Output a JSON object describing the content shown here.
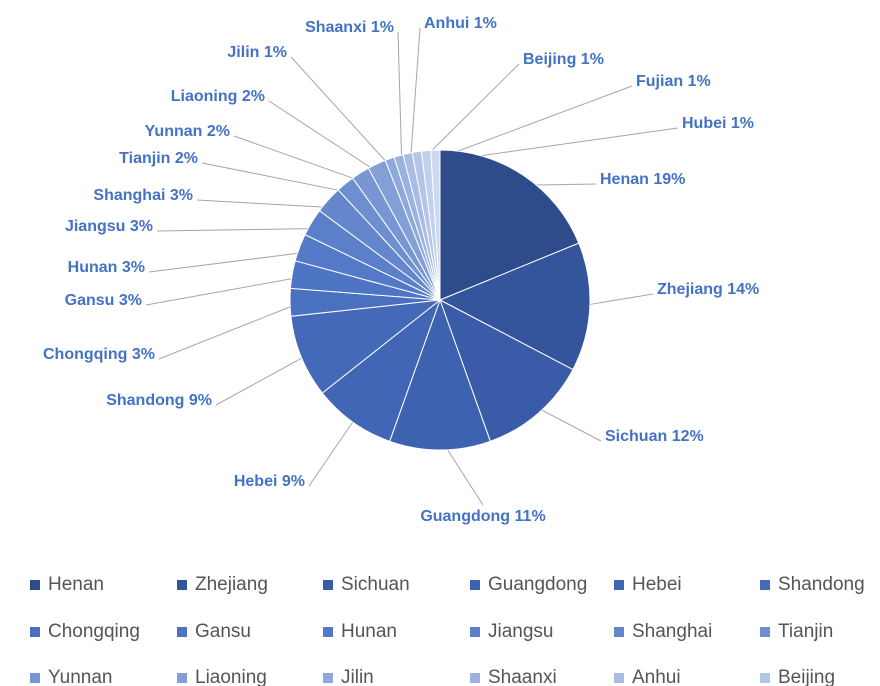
{
  "chart_data": {
    "type": "pie",
    "categories": [
      "Henan",
      "Zhejiang",
      "Sichuan",
      "Guangdong",
      "Hebei",
      "Shandong",
      "Chongqing",
      "Gansu",
      "Hunan",
      "Jiangsu",
      "Shanghai",
      "Tianjin",
      "Yunnan",
      "Liaoning",
      "Jilin",
      "Shaanxi",
      "Anhui",
      "Beijing",
      "Fujian",
      "Hubei"
    ],
    "values": [
      19,
      14,
      12,
      11,
      9,
      9,
      3,
      3,
      3,
      3,
      3,
      2,
      2,
      2,
      1,
      1,
      1,
      1,
      1,
      1
    ],
    "value_labels": [
      "19%",
      "14%",
      "12%",
      "11%",
      "9%",
      "9%",
      "3%",
      "3%",
      "3%",
      "3%",
      "3%",
      "2%",
      "2%",
      "2%",
      "1%",
      "1%",
      "1%",
      "1%",
      "1%",
      "1%"
    ],
    "colors": [
      "#2e4b8c",
      "#34549c",
      "#3a5ca8",
      "#3d62b0",
      "#4066b5",
      "#4469b8",
      "#4a70c0",
      "#4e74c4",
      "#5479c6",
      "#5b7fc9",
      "#6386cc",
      "#6d8ed0",
      "#7896d4",
      "#839fd8",
      "#8fa8dc",
      "#9bb2e0",
      "#a8bce4",
      "#b4c6e8",
      "#c1d0ec",
      "#cdd9f0"
    ],
    "legend": "bottom"
  }
}
